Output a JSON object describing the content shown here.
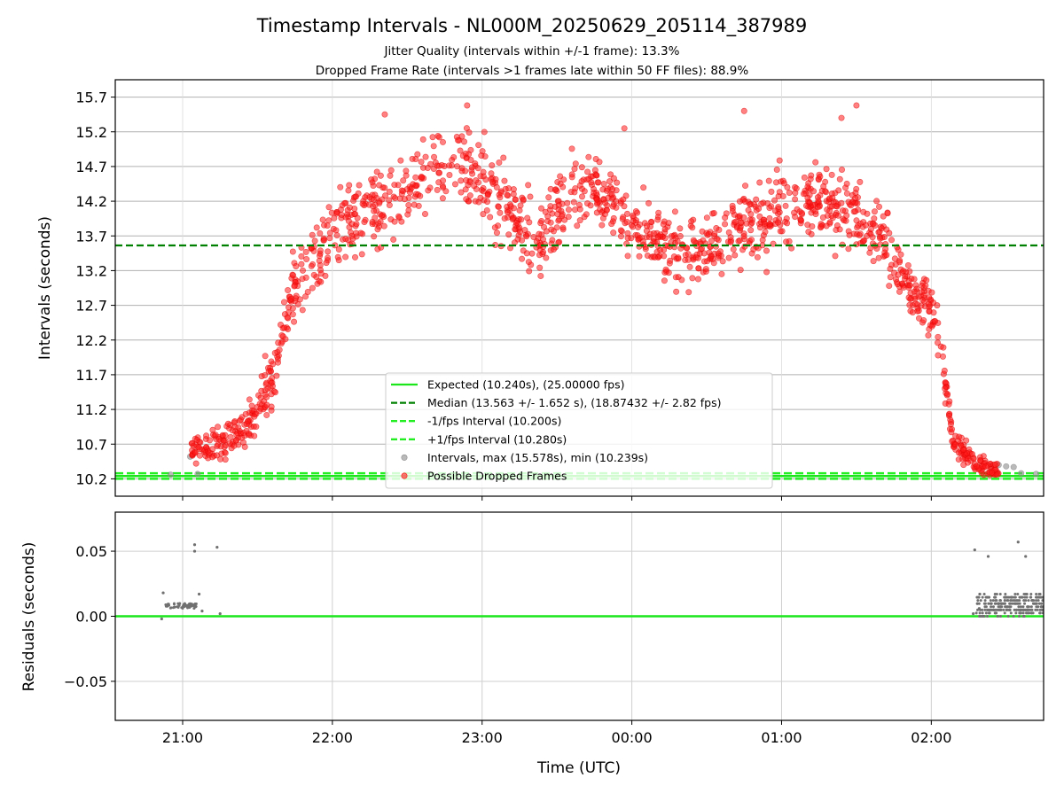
{
  "title": "Timestamp Intervals - NL000M_20250629_205114_387989",
  "subtitle1": "Jitter Quality (intervals within +/-1 frame): 13.3%",
  "subtitle2": "Dropped Frame Rate (intervals >1 frames late within 50 FF files): 88.9%",
  "colors": {
    "expected": "#1be61b",
    "median": "#008000",
    "fps_bounds": "#22ee22",
    "interval_points": "#8c8c8c",
    "dropped_points": "#ff1a1a",
    "residual_points": "#707070"
  },
  "legend": {
    "placement": "lower-center",
    "items": [
      {
        "label": "Expected (10.240s), (25.00000 fps)",
        "style": "solid-line",
        "color": "#1be61b"
      },
      {
        "label": "Median (13.563 +/- 1.652 s), (18.87432 +/- 2.82 fps)",
        "style": "dashed-line",
        "color": "#008000"
      },
      {
        "label": "-1/fps Interval (10.200s)",
        "style": "dashed-line",
        "color": "#22ee22"
      },
      {
        "label": "+1/fps Interval (10.280s)",
        "style": "dashed-line",
        "color": "#22ee22"
      },
      {
        "label": "Intervals, max (15.578s), min (10.239s)",
        "style": "marker",
        "color": "#8c8c8c"
      },
      {
        "label": "Possible Dropped Frames",
        "style": "marker",
        "color": "#ff1a1a"
      }
    ]
  },
  "chart_data": [
    {
      "type": "scatter",
      "panel": "intervals",
      "ylabel": "Intervals (seconds)",
      "xlim_hours": [
        20.55,
        26.75
      ],
      "ylim": [
        9.95,
        15.95
      ],
      "y_ticks": [
        "10.2",
        "10.7",
        "11.2",
        "11.7",
        "12.2",
        "12.7",
        "13.2",
        "13.7",
        "14.2",
        "14.7",
        "15.2",
        "15.7"
      ],
      "y_tick_values": [
        10.2,
        10.7,
        11.2,
        11.7,
        12.2,
        12.7,
        13.2,
        13.7,
        14.2,
        14.7,
        15.2,
        15.7
      ],
      "grid": true,
      "reference_lines": {
        "expected": 10.24,
        "median": 13.563,
        "minus_fps": 10.2,
        "plus_fps": 10.28
      },
      "series": [
        {
          "name": "Possible Dropped Frames",
          "color": "#ff1a1a",
          "envelope": {
            "hours": [
              21.05,
              21.2,
              21.4,
              21.6,
              21.75,
              21.9,
              22.0,
              22.2,
              22.4,
              22.6,
              22.8,
              23.0,
              23.2,
              23.4,
              23.6,
              23.8,
              24.0,
              24.2,
              24.4,
              24.6,
              24.8,
              25.0,
              25.2,
              25.4,
              25.55,
              25.7,
              25.85,
              26.0,
              26.05,
              26.15,
              26.3,
              26.45
            ],
            "centers": [
              10.6,
              10.65,
              10.9,
              11.6,
              13.0,
              13.4,
              13.8,
              14.0,
              14.2,
              14.6,
              14.8,
              14.5,
              14.0,
              13.6,
              14.4,
              14.3,
              13.8,
              13.6,
              13.4,
              13.7,
              13.9,
              14.1,
              14.2,
              14.1,
              13.9,
              13.6,
              13.0,
              12.6,
              12.2,
              10.7,
              10.4,
              10.3
            ],
            "spread": [
              0.2,
              0.25,
              0.25,
              0.45,
              0.45,
              0.5,
              0.5,
              0.55,
              0.55,
              0.55,
              0.55,
              0.55,
              0.55,
              0.55,
              0.5,
              0.5,
              0.5,
              0.5,
              0.5,
              0.5,
              0.5,
              0.55,
              0.55,
              0.5,
              0.5,
              0.45,
              0.4,
              0.35,
              0.3,
              0.2,
              0.15,
              0.08
            ]
          },
          "point_count": 1500,
          "extra_points": [
            [
              22.35,
              15.45
            ],
            [
              22.9,
              15.58
            ],
            [
              23.95,
              15.25
            ],
            [
              24.75,
              15.5
            ],
            [
              25.5,
              15.58
            ],
            [
              25.4,
              15.4
            ],
            [
              24.6,
              13.15
            ],
            [
              24.9,
              13.18
            ]
          ]
        },
        {
          "name": "Intervals, max (15.578s), min (10.239s)",
          "color": "#8c8c8c",
          "points": [
            [
              21.05,
              10.52
            ],
            [
              21.1,
              10.27
            ],
            [
              20.92,
              10.26
            ],
            [
              26.4,
              10.39
            ],
            [
              26.45,
              10.4
            ],
            [
              26.5,
              10.38
            ],
            [
              26.55,
              10.37
            ],
            [
              26.6,
              10.28
            ],
            [
              26.7,
              10.27
            ]
          ]
        }
      ]
    },
    {
      "type": "scatter",
      "panel": "residuals",
      "xlabel": "Time (UTC)",
      "ylabel": "Residuals (seconds)",
      "xlim_hours": [
        20.55,
        26.75
      ],
      "ylim": [
        -0.08,
        0.08
      ],
      "y_ticks": [
        "−0.05",
        "0.00",
        "0.05"
      ],
      "y_tick_values": [
        -0.05,
        0.0,
        0.05
      ],
      "x_ticks": [
        "21:00",
        "22:00",
        "23:00",
        "00:00",
        "01:00",
        "02:00"
      ],
      "x_tick_hours": [
        21,
        22,
        23,
        24,
        25,
        26
      ],
      "grid": true,
      "baseline": 0.0,
      "residual_points": [
        [
          20.87,
          0.018
        ],
        [
          20.86,
          -0.002
        ],
        [
          21.08,
          0.055
        ],
        [
          21.08,
          0.05
        ],
        [
          21.23,
          0.053
        ],
        [
          21.11,
          0.017
        ],
        [
          21.13,
          0.004
        ],
        [
          21.25,
          0.002
        ],
        [
          26.29,
          0.051
        ],
        [
          26.38,
          0.046
        ],
        [
          26.58,
          0.057
        ],
        [
          26.63,
          0.046
        ],
        [
          26.28,
          0.002
        ],
        [
          26.32,
          0.006
        ]
      ],
      "residual_cluster_a": {
        "hours": [
          20.88,
          21.1
        ],
        "level": 0.008,
        "spread": 0.002,
        "count": 60
      },
      "residual_cluster_b": {
        "hours": [
          26.3,
          26.75
        ],
        "spread_max": 0.017,
        "count": 260
      }
    }
  ]
}
